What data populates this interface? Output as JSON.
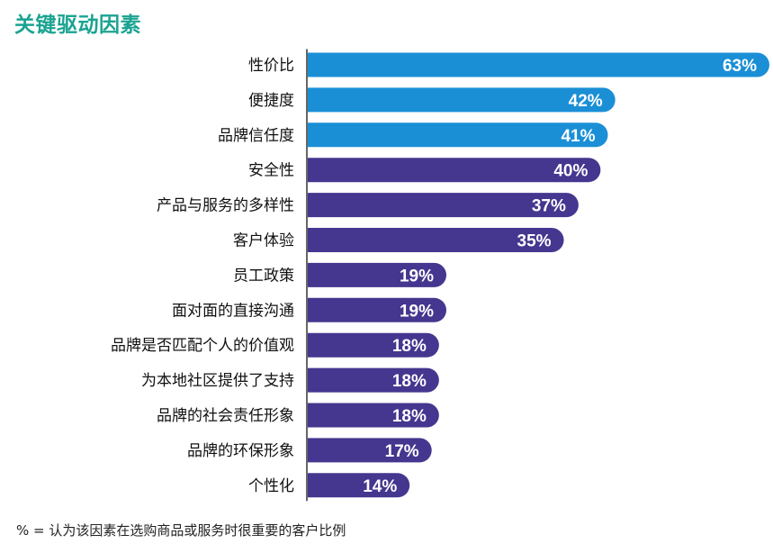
{
  "title": "关键驱动因素",
  "footnote": "% = 认为该因素在选购商品或服务时很重要的客户比例",
  "colors": {
    "title": "#1aa391",
    "highlight_bar": "#1a8fd6",
    "default_bar": "#45368f",
    "axis": "#000000",
    "bar_label": "#ffffff",
    "category_label": "#111111"
  },
  "chart_data": {
    "type": "bar",
    "orientation": "horizontal",
    "title": "关键驱动因素",
    "categories": [
      "性价比",
      "便捷度",
      "品牌信任度",
      "安全性",
      "产品与服务的多样性",
      "客户体验",
      "员工政策",
      "面对面的直接沟通",
      "品牌是否匹配个人的价值观",
      "为本地社区提供了支持",
      "品牌的社会责任形象",
      "品牌的环保形象",
      "个性化"
    ],
    "values": [
      63,
      42,
      41,
      40,
      37,
      35,
      19,
      19,
      18,
      18,
      18,
      17,
      14
    ],
    "data_labels": [
      "63%",
      "42%",
      "41%",
      "40%",
      "37%",
      "35%",
      "19%",
      "19%",
      "18%",
      "18%",
      "18%",
      "17%",
      "14%"
    ],
    "highlighted_count": 3,
    "unit": "%",
    "xlim": [
      0,
      63
    ],
    "grid": false,
    "legend": "none"
  }
}
